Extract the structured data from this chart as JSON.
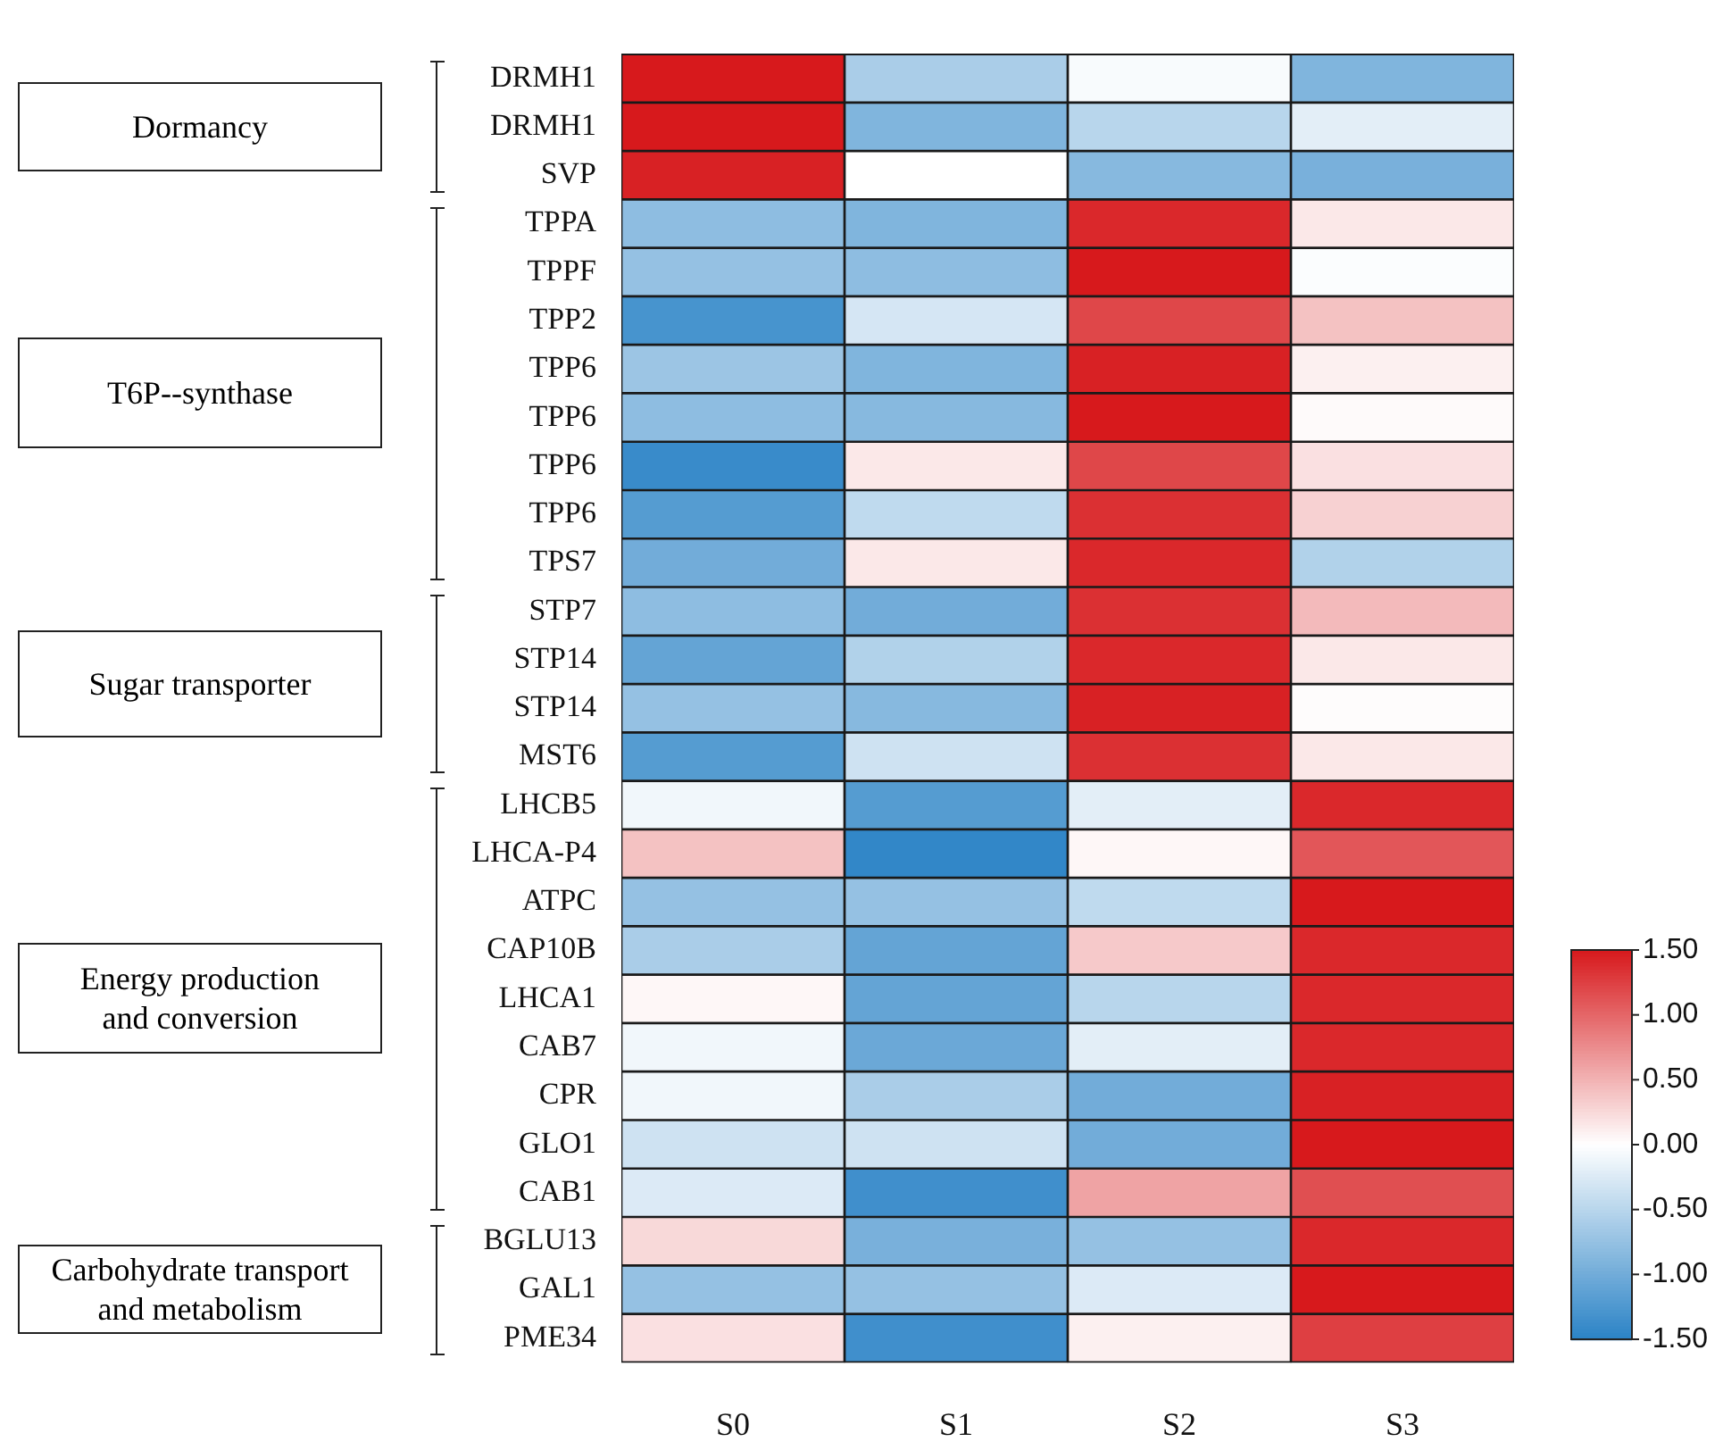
{
  "chart_data": {
    "type": "heatmap",
    "categories": [
      "S0",
      "S1",
      "S2",
      "S3"
    ],
    "y_categories": [
      "DRMH1",
      "DRMH1",
      "SVP",
      "TPPA",
      "TPPF",
      "TPP2",
      "TPP6",
      "TPP6",
      "TPP6",
      "TPP6",
      "TPS7",
      "STP7",
      "STP14",
      "STP14",
      "MST6",
      "LHCB5",
      "LHCA-P4",
      "ATPC",
      "CAP10B",
      "LHCA1",
      "CAB7",
      "CPR",
      "GLO1",
      "CAB1",
      "BGLU13",
      "GAL1",
      "PME34"
    ],
    "clim": [
      -1.5,
      1.5
    ],
    "cticks": [
      {
        "value": 1.5,
        "label": "1.50"
      },
      {
        "value": 1.0,
        "label": "1.00"
      },
      {
        "value": 0.5,
        "label": "0.50"
      },
      {
        "value": 0,
        "label": "0.00"
      },
      {
        "value": -0.5,
        "label": "-0.50"
      },
      {
        "value": -1.0,
        "label": "-1.00"
      },
      {
        "value": -1.5,
        "label": "-1.50"
      }
    ],
    "annotations": [
      "Dormancy",
      "T6P--synthase",
      "Sugar transporter",
      "Energy production and conversion",
      "Carbohydrate transport and metabolism"
    ],
    "cells": [
      [
        1.5,
        -0.6,
        -0.05,
        -0.9
      ],
      [
        1.5,
        -0.9,
        -0.5,
        -0.2
      ],
      [
        1.45,
        0.0,
        -0.85,
        -0.95
      ],
      [
        -0.8,
        -0.9,
        1.4,
        0.15
      ],
      [
        -0.75,
        -0.8,
        1.5,
        -0.03
      ],
      [
        -1.3,
        -0.3,
        1.2,
        0.4
      ],
      [
        -0.7,
        -0.9,
        1.45,
        0.1
      ],
      [
        -0.8,
        -0.85,
        1.5,
        0.03
      ],
      [
        -1.4,
        0.15,
        1.2,
        0.2
      ],
      [
        -1.2,
        -0.45,
        1.35,
        0.3
      ],
      [
        -1.0,
        0.15,
        1.4,
        -0.55
      ],
      [
        -0.8,
        -1.0,
        1.35,
        0.45
      ],
      [
        -1.1,
        -0.55,
        1.4,
        0.15
      ],
      [
        -0.75,
        -0.85,
        1.45,
        0.02
      ],
      [
        -1.2,
        -0.35,
        1.35,
        0.15
      ],
      [
        -0.1,
        -1.2,
        -0.2,
        1.4
      ],
      [
        0.4,
        -1.45,
        0.05,
        1.1
      ],
      [
        -0.75,
        -0.75,
        -0.45,
        1.5
      ],
      [
        -0.6,
        -1.1,
        0.35,
        1.4
      ],
      [
        0.05,
        -1.1,
        -0.5,
        1.4
      ],
      [
        -0.1,
        -1.05,
        -0.2,
        1.4
      ],
      [
        -0.1,
        -0.6,
        -1.0,
        1.45
      ],
      [
        -0.35,
        -0.35,
        -1.0,
        1.5
      ],
      [
        -0.25,
        -1.35,
        0.6,
        1.15
      ],
      [
        0.25,
        -0.95,
        -0.75,
        1.4
      ],
      [
        -0.75,
        -0.75,
        -0.25,
        1.5
      ],
      [
        0.2,
        -1.35,
        0.1,
        1.25
      ]
    ]
  }
}
